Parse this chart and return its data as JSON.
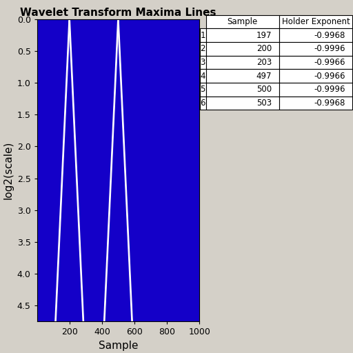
{
  "title": "Wavelet Transform Maxima Lines",
  "xlabel": "Sample",
  "ylabel": "log2(scale)",
  "xlim": [
    1,
    1000
  ],
  "ylim_bottom": 4.75,
  "ylim_top": 0.0,
  "xticks": [
    200,
    400,
    600,
    800,
    1000
  ],
  "yticks": [
    0,
    0.5,
    1,
    1.5,
    2,
    2.5,
    3,
    3.5,
    4,
    4.5
  ],
  "bg_color": "#1400C8",
  "fig_bg": "#d4d0c8",
  "n_samples": 1000,
  "maxima_samples": [
    197,
    200,
    203,
    497,
    500,
    503
  ],
  "scale_max": 4.75,
  "line_color": "white",
  "spread_factor": 18.0,
  "table_data": {
    "row_labels": [
      "1",
      "2",
      "3",
      "4",
      "5",
      "6"
    ],
    "col_labels": [
      "Sample",
      "Holder Exponent"
    ],
    "values": [
      [
        197,
        -0.9968
      ],
      [
        200,
        -0.9996
      ],
      [
        203,
        -0.9966
      ],
      [
        497,
        -0.9966
      ],
      [
        500,
        -0.9996
      ],
      [
        503,
        -0.9968
      ]
    ]
  }
}
